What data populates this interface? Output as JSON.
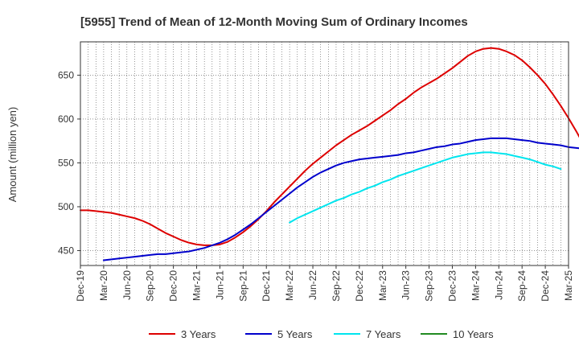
{
  "chart_data": {
    "type": "line",
    "title": "[5955]  Trend of Mean of 12-Month Moving Sum of Ordinary Incomes",
    "xlabel": "",
    "ylabel": "Amount (million yen)",
    "ylim": [
      433,
      688
    ],
    "yticks": [
      450,
      500,
      550,
      600,
      650
    ],
    "grid": true,
    "legend_position": "bottom",
    "x_tick_labels": [
      "Dec-19",
      "Mar-20",
      "Jun-20",
      "Sep-20",
      "Dec-20",
      "Mar-21",
      "Jun-21",
      "Sep-21",
      "Dec-21",
      "Mar-22",
      "Jun-22",
      "Sep-22",
      "Dec-22",
      "Mar-23",
      "Jun-23",
      "Sep-23",
      "Dec-23",
      "Mar-24",
      "Jun-24",
      "Sep-24",
      "Dec-24",
      "Mar-25"
    ],
    "x_start": "Dec-19",
    "x_end": "Mar-25",
    "series": [
      {
        "name": "3 Years",
        "color": "#dd0000",
        "start_index": 0,
        "values": [
          496,
          496,
          495,
          494,
          493,
          491,
          489,
          487,
          484,
          480,
          475,
          470,
          466,
          462,
          459,
          457,
          456,
          456,
          457,
          460,
          465,
          471,
          478,
          486,
          495,
          505,
          514,
          523,
          532,
          541,
          549,
          556,
          563,
          570,
          576,
          582,
          587,
          592,
          598,
          604,
          610,
          617,
          623,
          630,
          636,
          641,
          646,
          652,
          658,
          665,
          672,
          677,
          680,
          681,
          680,
          677,
          673,
          667,
          659,
          650,
          640,
          628,
          615,
          601,
          586,
          570
        ]
      },
      {
        "name": "5 Years",
        "color": "#0000cc",
        "start_index": 3,
        "values": [
          439,
          440,
          441,
          442,
          443,
          444,
          445,
          446,
          446,
          447,
          448,
          449,
          451,
          453,
          456,
          459,
          463,
          468,
          474,
          480,
          487,
          494,
          501,
          508,
          515,
          522,
          528,
          534,
          539,
          543,
          547,
          550,
          552,
          554,
          555,
          556,
          557,
          558,
          559,
          561,
          562,
          564,
          566,
          568,
          569,
          571,
          572,
          574,
          576,
          577,
          578,
          578,
          578,
          577,
          576,
          575,
          573,
          572,
          571,
          570,
          568,
          567,
          566,
          565,
          564
        ]
      },
      {
        "name": "7 Years",
        "color": "#00e5ee",
        "start_index": 27,
        "values": [
          482,
          487,
          491,
          495,
          499,
          503,
          507,
          510,
          514,
          517,
          521,
          524,
          528,
          531,
          535,
          538,
          541,
          544,
          547,
          550,
          553,
          556,
          558,
          560,
          561,
          562,
          562,
          561,
          560,
          558,
          556,
          554,
          551,
          548,
          546,
          543
        ]
      },
      {
        "name": "10 Years",
        "color": "#228b22",
        "start_index": 0,
        "values": []
      }
    ]
  }
}
